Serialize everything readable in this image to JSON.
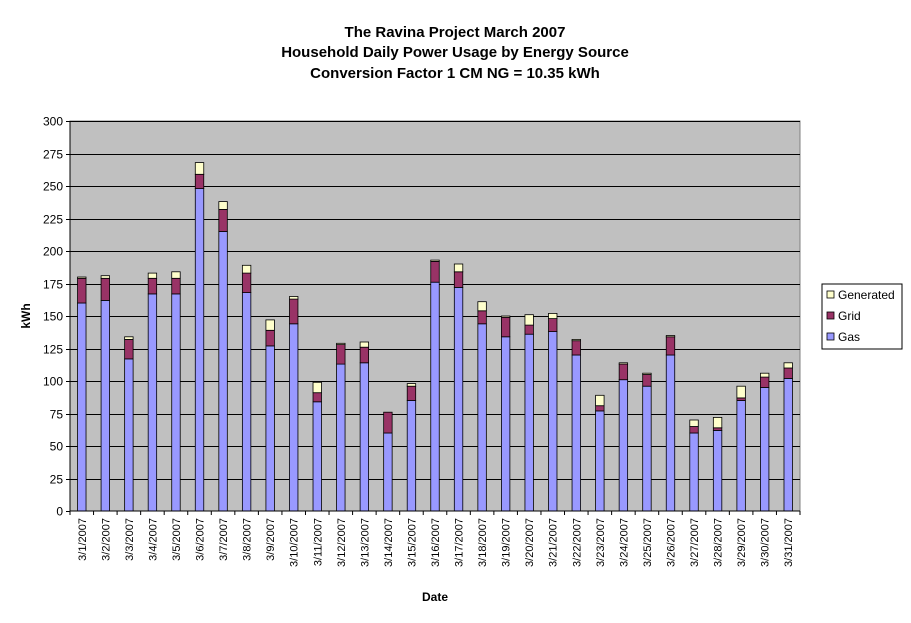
{
  "chart_data": {
    "type": "bar",
    "stacked": true,
    "title": [
      "The Ravina Project March 2007",
      "Household Daily Power Usage by Energy Source",
      "Conversion Factor 1 CM NG = 10.35 kWh"
    ],
    "xlabel": "Date",
    "ylabel": "kWh",
    "ylim": [
      0,
      300
    ],
    "yticks": [
      0,
      25,
      50,
      75,
      100,
      125,
      150,
      175,
      200,
      225,
      250,
      275,
      300
    ],
    "grid": true,
    "legend_position": "right",
    "categories": [
      "3/1/2007",
      "3/2/2007",
      "3/3/2007",
      "3/4/2007",
      "3/5/2007",
      "3/6/2007",
      "3/7/2007",
      "3/8/2007",
      "3/9/2007",
      "3/10/2007",
      "3/11/2007",
      "3/12/2007",
      "3/13/2007",
      "3/14/2007",
      "3/15/2007",
      "3/16/2007",
      "3/17/2007",
      "3/18/2007",
      "3/19/2007",
      "3/20/2007",
      "3/21/2007",
      "3/22/2007",
      "3/23/2007",
      "3/24/2007",
      "3/25/2007",
      "3/26/2007",
      "3/27/2007",
      "3/28/2007",
      "3/29/2007",
      "3/30/2007",
      "3/31/2007"
    ],
    "series": [
      {
        "name": "Gas",
        "color": "#9999ff",
        "values": [
          160,
          162,
          117,
          167,
          167,
          248,
          215,
          168,
          127,
          144,
          84,
          113,
          114,
          60,
          85,
          176,
          172,
          144,
          134,
          136,
          138,
          120,
          77,
          101,
          96,
          120,
          60,
          62,
          85,
          95,
          102
        ]
      },
      {
        "name": "Grid",
        "color": "#993366",
        "values": [
          19,
          17,
          15,
          12,
          12,
          11,
          17,
          15,
          12,
          19,
          7,
          15,
          12,
          16,
          11,
          16,
          12,
          10,
          15,
          7,
          10,
          11,
          4,
          12,
          9,
          14,
          5,
          2,
          2,
          8,
          8
        ]
      },
      {
        "name": "Generated",
        "color": "#ffffcc",
        "values": [
          1,
          2,
          2,
          4,
          5,
          9,
          6,
          6,
          8,
          2,
          8,
          1,
          4,
          0,
          2,
          1,
          6,
          7,
          1,
          8,
          4,
          1,
          8,
          1,
          1,
          1,
          5,
          8,
          9,
          3,
          4
        ]
      }
    ],
    "legend_order": [
      "Generated",
      "Grid",
      "Gas"
    ],
    "colors": {
      "plot_background": "#c0c0c0",
      "gridline": "#000000"
    }
  }
}
